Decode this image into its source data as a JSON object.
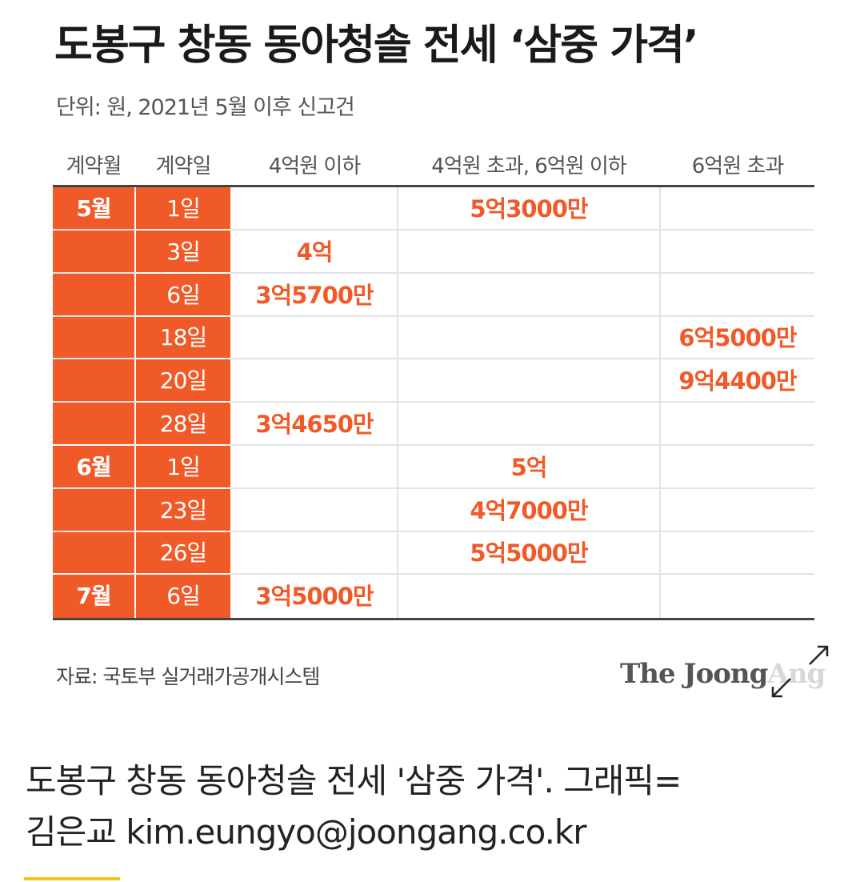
{
  "title": "도봉구 창동 동아청솔 전세 ‘삼중 가격’",
  "subtitle": "단위: 원, 2021년 5월 이후 신고건",
  "columns": [
    "계약월",
    "계약일",
    "4억원 이하",
    "4억원 초과, 6억원 이하",
    "6억원 초과"
  ],
  "rows": [
    {
      "month": "5월",
      "day": "1일",
      "c1": "",
      "c2": "5억3000만",
      "c3": ""
    },
    {
      "month": "",
      "day": "3일",
      "c1": "4억",
      "c2": "",
      "c3": ""
    },
    {
      "month": "",
      "day": "6일",
      "c1": "3억5700만",
      "c2": "",
      "c3": ""
    },
    {
      "month": "",
      "day": "18일",
      "c1": "",
      "c2": "",
      "c3": "6억5000만"
    },
    {
      "month": "",
      "day": "20일",
      "c1": "",
      "c2": "",
      "c3": "9억4400만"
    },
    {
      "month": "",
      "day": "28일",
      "c1": "3억4650만",
      "c2": "",
      "c3": ""
    },
    {
      "month": "6월",
      "day": "1일",
      "c1": "",
      "c2": "5억",
      "c3": ""
    },
    {
      "month": "",
      "day": "23일",
      "c1": "",
      "c2": "4억7000만",
      "c3": ""
    },
    {
      "month": "",
      "day": "26일",
      "c1": "",
      "c2": "5억5000만",
      "c3": ""
    },
    {
      "month": "7월",
      "day": "6일",
      "c1": "3억5000만",
      "c2": "",
      "c3": ""
    }
  ],
  "source": "자료: 국토부 실거래가공개시스템",
  "logo": {
    "main": "The Joong",
    "faded": "Ang"
  },
  "caption": {
    "line1": "도봉구 창동 동아청솔 전세 '삼중 가격'. 그래픽=",
    "line2": "김은교 kim.eungyo@joongang.co.kr"
  },
  "colors": {
    "accent": "#f05a28",
    "rule": "#444444",
    "caption_bar": "#f5c518"
  },
  "chart_data": {
    "type": "table",
    "title": "도봉구 창동 동아청솔 전세 ‘삼중 가격’",
    "subtitle": "단위: 원, 2021년 5월 이후 신고건",
    "headers": [
      "계약월",
      "계약일",
      "4억원 이하",
      "4억원 초과, 6억원 이하",
      "6억원 초과"
    ],
    "rows": [
      [
        "5월",
        "1일",
        "",
        "5억3000만",
        ""
      ],
      [
        "",
        "3일",
        "4억",
        "",
        ""
      ],
      [
        "",
        "6일",
        "3억5700만",
        "",
        ""
      ],
      [
        "",
        "18일",
        "",
        "",
        "6억5000만"
      ],
      [
        "",
        "20일",
        "",
        "",
        "9억4400만"
      ],
      [
        "",
        "28일",
        "3억4650만",
        "",
        ""
      ],
      [
        "6월",
        "1일",
        "",
        "5억",
        ""
      ],
      [
        "",
        "23일",
        "",
        "4억7000만",
        ""
      ],
      [
        "",
        "26일",
        "",
        "5억5000만",
        ""
      ],
      [
        "7월",
        "6일",
        "3억5000만",
        "",
        ""
      ]
    ]
  }
}
